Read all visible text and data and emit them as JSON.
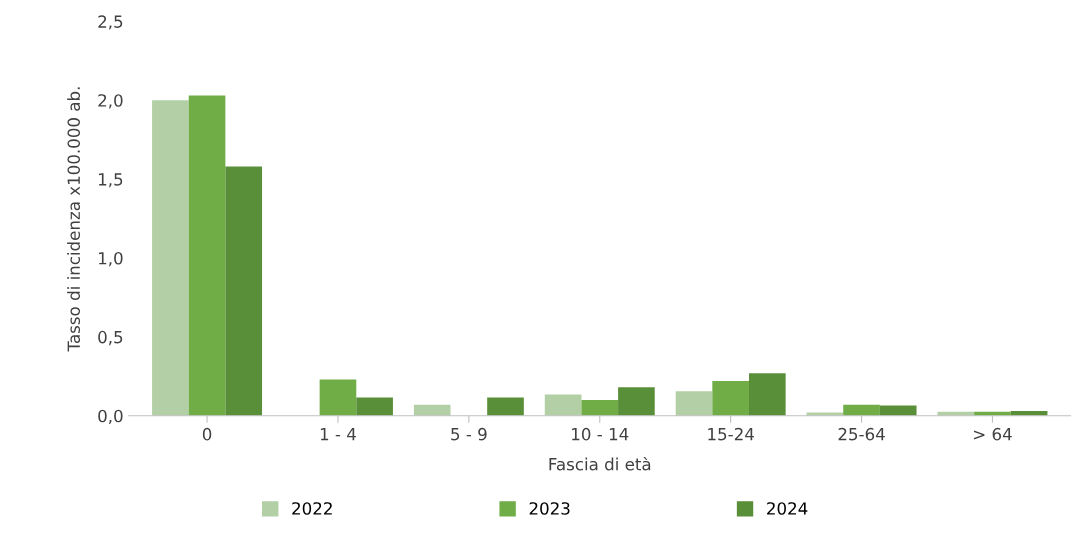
{
  "chart_data": {
    "type": "bar",
    "xlabel": "Fascia di età",
    "ylabel": "Tasso di incidenza x100.000 ab.",
    "categories": [
      "0",
      "1 - 4",
      "5 - 9",
      "10 - 14",
      "15-24",
      "25-64",
      "> 64"
    ],
    "series": [
      {
        "name": "2022",
        "color": "#b3cfa5",
        "values": [
          2.0,
          0,
          0.07,
          0.135,
          0.155,
          0.02,
          0.025
        ]
      },
      {
        "name": "2023",
        "color": "#70ad47",
        "values": [
          2.03,
          0.23,
          0,
          0.1,
          0.22,
          0.07,
          0.025
        ]
      },
      {
        "name": "2024",
        "color": "#5a8f39",
        "values": [
          1.58,
          0.115,
          0.115,
          0.18,
          0.27,
          0.065,
          0.03
        ]
      }
    ],
    "ylim": [
      0,
      2.5
    ],
    "yticks": [
      {
        "value": 0,
        "label": "0,0"
      },
      {
        "value": 0.5,
        "label": "0,5"
      },
      {
        "value": 1.0,
        "label": "1,0"
      },
      {
        "value": 1.5,
        "label": "1,5"
      },
      {
        "value": 2.0,
        "label": "2,0"
      },
      {
        "value": 2.5,
        "label": "2,5"
      }
    ],
    "grid": false,
    "legend": "bottom"
  }
}
